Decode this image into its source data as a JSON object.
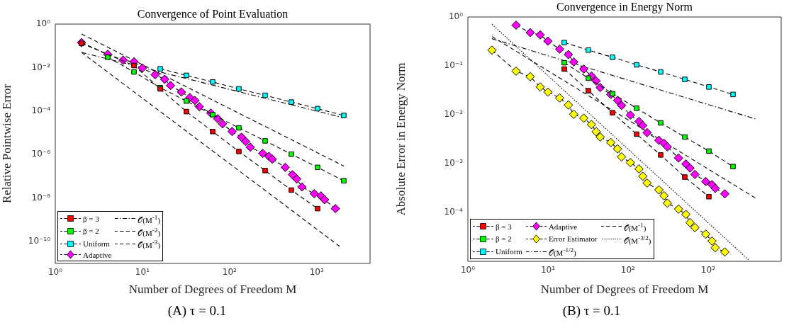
{
  "chart_data": [
    {
      "type": "line",
      "title": "Convergence of Point Evaluation",
      "xlabel": "Number of Degrees of Freedom M",
      "ylabel": "Relative Pointwise Error",
      "log": "xy",
      "legend": "bottom left",
      "xlim": [
        1,
        4096
      ],
      "ylim": [
        1e-11,
        1
      ],
      "xticks": [
        {
          "value": 1,
          "label": "10⁰"
        },
        {
          "value": 10,
          "label": "10¹"
        },
        {
          "value": 100,
          "label": "10²"
        },
        {
          "value": 1000,
          "label": "10³"
        }
      ],
      "yticks": [
        {
          "value": 1,
          "label": "10⁰"
        },
        {
          "value": 0.01,
          "label": "10⁻²"
        },
        {
          "value": 0.0001,
          "label": "10⁻⁴"
        },
        {
          "value": 1e-06,
          "label": "10⁻⁶"
        },
        {
          "value": 1e-08,
          "label": "10⁻⁸"
        },
        {
          "value": 1e-10,
          "label": "10⁻¹⁰"
        }
      ],
      "annotations": [
        "(A) τ = 0.1"
      ],
      "series": [
        {
          "name": "β = 3",
          "color": "#ff0000",
          "marker": "square",
          "line_style": "dashed",
          "x": [
            2,
            8,
            16,
            32,
            64,
            128,
            256,
            512,
            1024
          ],
          "values": [
            0.13,
            0.0125,
            0.00105,
            9.5e-05,
            1.15e-05,
            1.4e-06,
            1.85e-07,
            2.35e-08,
            3.3e-09
          ]
        },
        {
          "name": "β = 2",
          "color": "#00ff00",
          "marker": "square",
          "line_style": "dashed",
          "x": [
            4,
            8,
            16,
            32,
            64,
            128,
            256,
            512,
            1024,
            2048
          ],
          "values": [
            0.03,
            0.0063,
            0.0012,
            0.00029,
            6.9e-05,
            1.7e-05,
            4.3e-06,
            1.05e-06,
            2.6e-07,
            6.3e-08
          ]
        },
        {
          "name": "Uniform",
          "color": "#00ffff",
          "marker": "square",
          "line_style": "dashed",
          "x": [
            16,
            32,
            64,
            128,
            256,
            512,
            1024,
            2048
          ],
          "values": [
            0.0088,
            0.0044,
            0.0022,
            0.00105,
            0.00053,
            0.00026,
            0.00013,
            6.3e-05
          ]
        },
        {
          "name": "Adaptive",
          "color": "#ff00ff",
          "marker": "diamond",
          "line_style": "dashed",
          "x": [
            2,
            4,
            6,
            8,
            10,
            14,
            18,
            21,
            28,
            35,
            40,
            45,
            61,
            73,
            83,
            107,
            137,
            153,
            173,
            240,
            283,
            309,
            436,
            527,
            590,
            678,
            937,
            1120,
            1230,
            1640
          ],
          "values": [
            0.14,
            0.041,
            0.022,
            0.0185,
            0.0095,
            0.0047,
            0.0029,
            0.0015,
            0.00076,
            0.00042,
            0.00031,
            0.00016,
            8.1e-05,
            4.5e-05,
            2.6e-05,
            1.15e-05,
            6.3e-06,
            4e-06,
            2.2e-06,
            1.15e-06,
            8.3e-07,
            6.2e-07,
            2.6e-07,
            1.2e-07,
            7.6e-08,
            3.3e-08,
            1.6e-08,
            1.26e-08,
            8.5e-09,
            3.3e-09
          ]
        },
        {
          "name": "𝒪(M$^{-1}$)",
          "color": "#000000",
          "marker": "none",
          "line_style": "dashdot",
          "x": [
            2,
            2048
          ],
          "values": [
            0.05,
            4.9e-05
          ]
        },
        {
          "name": "𝒪(M$^{-2}$)",
          "color": "#000000",
          "marker": "none",
          "line_style": "dashed",
          "x": [
            2,
            2048
          ],
          "values": [
            0.35,
            3e-07
          ]
        },
        {
          "name": "𝒪(M$^{-3}$)",
          "color": "#000000",
          "marker": "none",
          "line_style": "dashed",
          "x": [
            2,
            1930
          ],
          "values": [
            0.05,
            5.2e-11
          ]
        }
      ]
    },
    {
      "type": "line",
      "title": "Convergence in Energy Norm",
      "xlabel": "Number of Degrees of Freedom M",
      "ylabel": "Absolute Error in Energy Norm",
      "log": "xy",
      "legend": "bottom left",
      "xlim": [
        1,
        8192
      ],
      "ylim": [
        1e-05,
        1
      ],
      "xticks": [
        {
          "value": 1,
          "label": "10⁰"
        },
        {
          "value": 10,
          "label": "10¹"
        },
        {
          "value": 100,
          "label": "10²"
        },
        {
          "value": 1000,
          "label": "10³"
        }
      ],
      "yticks": [
        {
          "value": 1,
          "label": "10⁰"
        },
        {
          "value": 0.1,
          "label": "10⁻¹"
        },
        {
          "value": 0.01,
          "label": "10⁻²"
        },
        {
          "value": 0.001,
          "label": "10⁻³"
        },
        {
          "value": 0.0001,
          "label": "10⁻⁴"
        }
      ],
      "annotations": [
        "(B) τ = 0.1"
      ],
      "series": [
        {
          "name": "β = 3",
          "color": "#ff0000",
          "marker": "square",
          "line_style": "dashed",
          "x": [
            16,
            32,
            64,
            128,
            256,
            512,
            1024
          ],
          "values": [
            0.086,
            0.031,
            0.011,
            0.004,
            0.0015,
            0.00053,
            0.00021
          ]
        },
        {
          "name": "β = 2",
          "color": "#00ff00",
          "marker": "square",
          "line_style": "dashed",
          "x": [
            16,
            32,
            64,
            128,
            256,
            512,
            1024,
            2048
          ],
          "values": [
            0.116,
            0.056,
            0.027,
            0.0136,
            0.0068,
            0.0035,
            0.0018,
            0.00087
          ]
        },
        {
          "name": "Uniform",
          "color": "#00ffff",
          "marker": "square",
          "line_style": "dashed",
          "x": [
            16,
            32,
            64,
            128,
            256,
            512,
            1024,
            2048
          ],
          "values": [
            0.3,
            0.21,
            0.15,
            0.105,
            0.075,
            0.053,
            0.037,
            0.026
          ]
        },
        {
          "name": "Adaptive",
          "color": "#ff00ff",
          "marker": "diamond",
          "line_style": "dashed",
          "x": [
            4,
            6,
            8,
            10,
            14,
            18,
            21,
            28,
            35,
            40,
            45,
            61,
            74,
            83,
            107,
            137,
            153,
            173,
            243,
            282,
            310,
            428,
            528,
            595,
            685,
            935,
            1120,
            1230,
            1620
          ],
          "values": [
            0.68,
            0.48,
            0.43,
            0.32,
            0.22,
            0.17,
            0.12,
            0.086,
            0.062,
            0.049,
            0.036,
            0.026,
            0.0197,
            0.0155,
            0.0098,
            0.0073,
            0.006,
            0.0043,
            0.003,
            0.0026,
            0.0022,
            0.0013,
            0.00098,
            0.00081,
            0.0006,
            0.00043,
            0.00037,
            0.00031,
            0.00024
          ]
        },
        {
          "name": "Error Estimator",
          "color": "#ffff00",
          "marker": "diamond",
          "line_style": "dashed",
          "x": [
            2,
            4,
            6,
            8,
            10,
            14,
            18,
            21,
            28,
            35,
            40,
            45,
            61,
            74,
            83,
            107,
            137,
            153,
            173,
            243,
            282,
            310,
            428,
            528,
            595,
            685,
            935,
            1120,
            1230,
            1620
          ],
          "values": [
            0.21,
            0.078,
            0.06,
            0.037,
            0.029,
            0.022,
            0.0158,
            0.0102,
            0.0085,
            0.0063,
            0.0045,
            0.0035,
            0.0027,
            0.002,
            0.00137,
            0.00105,
            0.00078,
            0.00055,
            0.0004,
            0.00029,
            0.00022,
            0.000155,
            0.000117,
            9.1e-05,
            6.2e-05,
            4.9e-05,
            3.6e-05,
            2.6e-05,
            1.9e-05,
            1.55e-05
          ]
        },
        {
          "name": "𝒪(M$^{-1/2}$)",
          "color": "#000000",
          "marker": "none",
          "line_style": "dashdot",
          "x": [
            2,
            4000
          ],
          "values": [
            0.36,
            0.0081
          ]
        },
        {
          "name": "𝒪(M$^{-1}$)",
          "color": "#000000",
          "marker": "none",
          "line_style": "dashed",
          "x": [
            2,
            4050
          ],
          "values": [
            0.4,
            0.00019
          ]
        },
        {
          "name": "𝒪(M$^{-3/2}$)",
          "color": "#000000",
          "marker": "none",
          "line_style": "dotted",
          "x": [
            2,
            3250
          ],
          "values": [
            0.71,
            1.05e-05
          ]
        }
      ]
    }
  ]
}
